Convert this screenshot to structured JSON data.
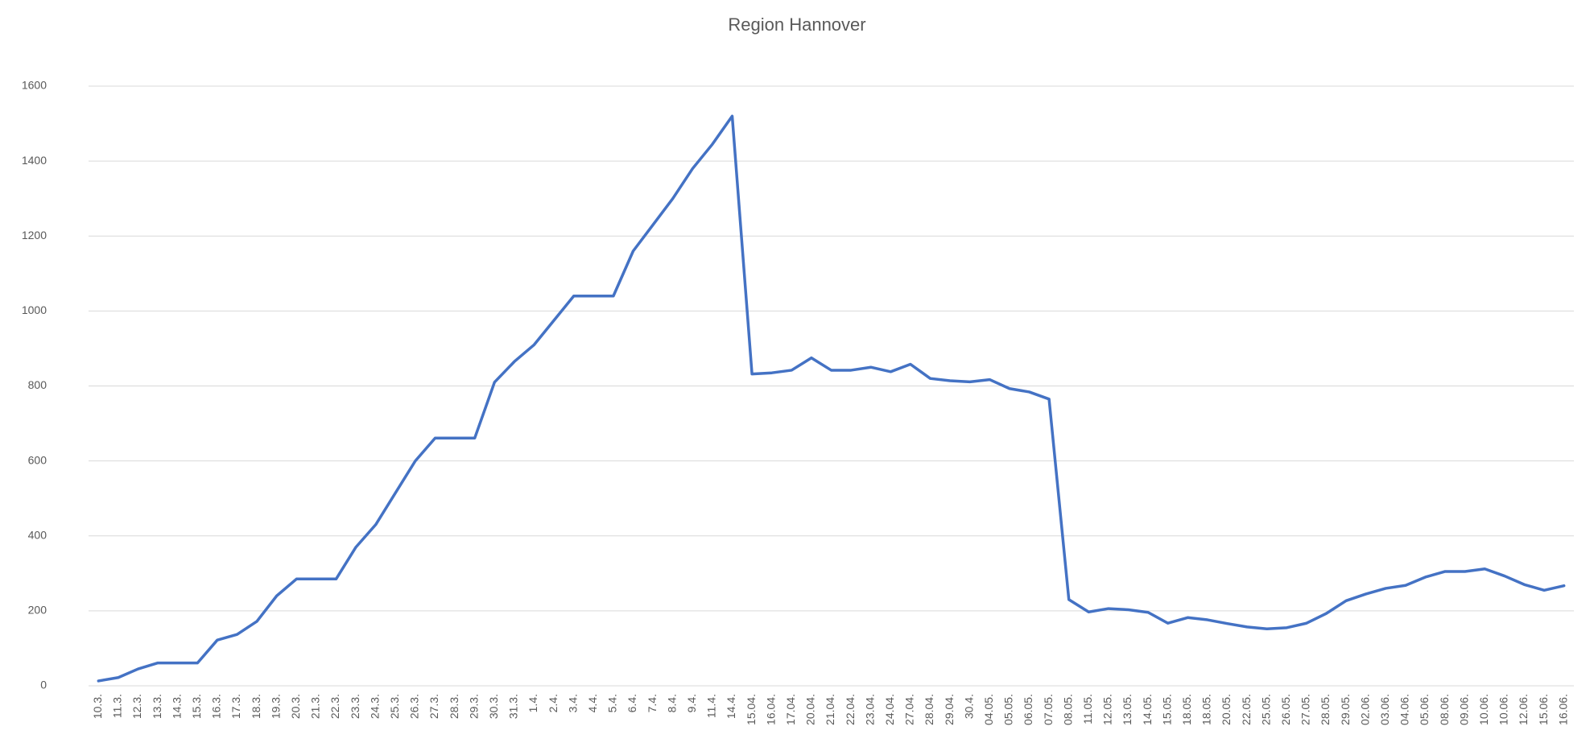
{
  "chart_data": {
    "type": "line",
    "title": "Region Hannover",
    "categories": [
      "10.3.",
      "11.3.",
      "12.3.",
      "13.3.",
      "14.3.",
      "15.3.",
      "16.3.",
      "17.3.",
      "18.3.",
      "19.3.",
      "20.3.",
      "21.3.",
      "22.3.",
      "23.3.",
      "24.3.",
      "25.3.",
      "26.3.",
      "27.3.",
      "28.3.",
      "29.3.",
      "30.3.",
      "31.3.",
      "1.4.",
      "2.4.",
      "3.4.",
      "4.4.",
      "5.4.",
      "6.4.",
      "7.4.",
      "8.4.",
      "9.4.",
      "11.4.",
      "14.4.",
      "15.04.",
      "16.04.",
      "17.04.",
      "20.04.",
      "21.04.",
      "22.04.",
      "23.04.",
      "24.04.",
      "27.04.",
      "28.04.",
      "29.04.",
      "30.4.",
      "04.05.",
      "05.05.",
      "06.05.",
      "07.05.",
      "08.05.",
      "11.05.",
      "12.05.",
      "13.05.",
      "14.05.",
      "15.05.",
      "18.05.",
      "18.05.",
      "20.05.",
      "22.05.",
      "25.05.",
      "26.05.",
      "27.05.",
      "28.05.",
      "29.05.",
      "02.06.",
      "03.06.",
      "04.06.",
      "05.06.",
      "08.06.",
      "09.06.",
      "10.06.",
      "10.06.",
      "12.06.",
      "15.06.",
      "16.06."
    ],
    "series": [
      {
        "color": "#4472c4",
        "values": [
          13,
          22,
          45,
          61,
          61,
          61,
          122,
          137,
          172,
          240,
          285,
          285,
          285,
          370,
          430,
          515,
          600,
          661,
          661,
          661,
          810,
          865,
          910,
          975,
          1040,
          1040,
          1040,
          1160,
          1230,
          1300,
          1380,
          1445,
          1520,
          832,
          835,
          842,
          875,
          842,
          842,
          850,
          838,
          858,
          820,
          814,
          811,
          817,
          793,
          784,
          765,
          230,
          197,
          206,
          203,
          196,
          167,
          182,
          176,
          166,
          157,
          152,
          155,
          167,
          193,
          227,
          245,
          260,
          268,
          290,
          305,
          305,
          312,
          293,
          270,
          255,
          267
        ]
      }
    ],
    "ylim": [
      0,
      1600
    ],
    "yticks": [
      0,
      200,
      400,
      600,
      800,
      1000,
      1200,
      1400,
      1600
    ],
    "grid": true
  }
}
